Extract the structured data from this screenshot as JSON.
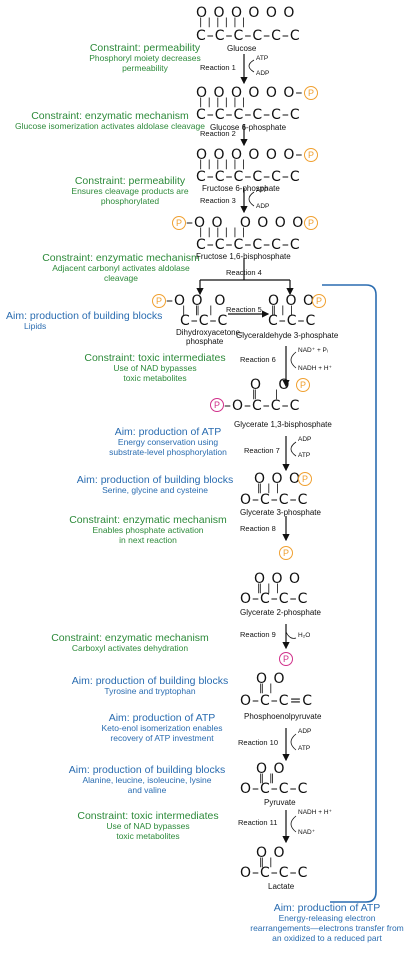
{
  "molecules": {
    "glucose": "Glucose",
    "glucose6p": "Glucose 6-phosphate",
    "fructose6p": "Fructose 6-phosphate",
    "fructose16bp": "Fructose 1,6-bisphosphate",
    "dhap_line1": "Dihydroxyacetone-",
    "dhap_line2": "phosphate",
    "g3p": "Glyceraldehyde 3-phosphate",
    "g13bp": "Glycerate 1,3-bisphosphate",
    "g3phos": "Glycerate 3-phosphate",
    "g2phos": "Glycerate 2-phosphate",
    "pep": "Phosphoenolpyruvate",
    "pyruvate": "Pyruvate",
    "lactate": "Lactate"
  },
  "reactions": {
    "r1": "Reaction 1",
    "r2": "Reaction 2",
    "r3": "Reaction 3",
    "r4": "Reaction 4",
    "r5": "Reaction 5",
    "r6": "Reaction 6",
    "r7": "Reaction 7",
    "r8": "Reaction 8",
    "r9": "Reaction 9",
    "r10": "Reaction 10",
    "r11": "Reaction 11"
  },
  "cofactors": {
    "atp": "ATP",
    "adp": "ADP",
    "nad_pi": "NAD⁺ + Pᵢ",
    "nadh_h": "NADH + H⁺",
    "nad": "NAD⁺",
    "h2o": "H₂O"
  },
  "structures": {
    "oxy6": "O O O O O O",
    "oxy6_last_p": "O O O O O O–",
    "bonds6": "| | | | | |",
    "carbon6": "C–C–C–C–C–C",
    "fructose6p_oxy": "O O   O O O O–",
    "fructose6p_bonds": "| ‖   | | | |",
    "fructose16_oxy": "–O O   O O O O–",
    "dhap_oxy": "–O O  O",
    "dhap_bonds": "|  ‖  |",
    "carbon3": "C–C–C",
    "g3p_oxy": "O O O–",
    "g3p_bonds": "‖ | |",
    "g13bp_top": "O   O",
    "g13bp_bonds": "‖    |",
    "g13bp_carbon": "–O–C–C–C",
    "glycerate_top": "O O O–",
    "glycerate_bonds": "‖ | |",
    "glycerate_carbon": "O–C–C–C",
    "g2p_top": "O O O",
    "g2p_bonds": "‖ | |",
    "pep_top": "O O",
    "pep_bonds": "‖ |",
    "pep_carbon": "O–C–C=C",
    "pyr_top": "O O",
    "pyr_bonds": "‖ ‖",
    "lac_top": "O O",
    "lac_bonds": "‖ |",
    "phosphate": "P"
  },
  "annotations": [
    {
      "type": "constraint",
      "title": "Constraint: permeability",
      "body": "Phosphoryl moiety decreases permeability"
    },
    {
      "type": "constraint",
      "title": "Constraint: enzymatic mechanism",
      "body": "Glucose isomerization activates aldolase cleavage"
    },
    {
      "type": "constraint",
      "title": "Constraint: permeability",
      "body": "Ensures cleavage products are phosphorylated"
    },
    {
      "type": "constraint",
      "title": "Constraint: enzymatic mechanism",
      "body": "Adjacent carbonyl activates aldolase cleavage"
    },
    {
      "type": "aim",
      "title": "Aim: production of building blocks",
      "body": "Lipids"
    },
    {
      "type": "constraint",
      "title": "Constraint: toxic intermediates",
      "body": "Use of NAD bypasses toxic metabolites"
    },
    {
      "type": "aim",
      "title": "Aim: production of ATP",
      "body": "Energy conservation using substrate-level phosphorylation"
    },
    {
      "type": "aim",
      "title": "Aim: production of building blocks",
      "body": "Serine, glycine and cysteine"
    },
    {
      "type": "constraint",
      "title": "Constraint: enzymatic mechanism",
      "body": "Enables phosphate activation in next reaction"
    },
    {
      "type": "constraint",
      "title": "Constraint: enzymatic mechanism",
      "body": "Carboxyl activates dehydration"
    },
    {
      "type": "aim",
      "title": "Aim: production of building blocks",
      "body": "Tyrosine and tryptophan"
    },
    {
      "type": "aim",
      "title": "Aim: production of ATP",
      "body": "Keto-enol isomerization enables recovery of ATP investment"
    },
    {
      "type": "aim",
      "title": "Aim: production of building blocks",
      "body": "Alanine, leucine, isoleucine, lysine and valine"
    },
    {
      "type": "constraint",
      "title": "Constraint: toxic intermediates",
      "body": "Use of NAD bypasses toxic metabolites"
    },
    {
      "type": "aim",
      "title": "Aim: production of ATP",
      "body": "Energy-releasing electron rearrangements—electrons transfer from an oxidized to a reduced part"
    }
  ],
  "colors": {
    "constraint": "#2d8a3a",
    "aim": "#2a6cb0",
    "phosphate_orange": "#f0a030",
    "phosphate_magenta": "#d0308a",
    "bracket": "#2a6cb0"
  }
}
